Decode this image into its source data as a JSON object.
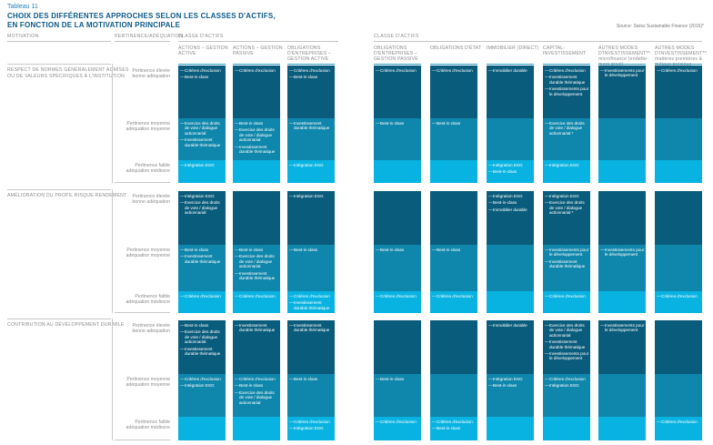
{
  "page": {
    "tag": "Tableau 11",
    "title_line1": "CHOIX DES DIFFÉRENTES APPROCHES SELON LES CLASSES D'ACTIFS,",
    "title_line2": "EN FONCTION DE LA MOTIVATION PRINCIPALE",
    "source": "Source: Swiss Sustainable Finance (2016)*"
  },
  "header": {
    "motivation": "MOTIVATION",
    "pertinence": "PERTINENCE/ADÉQUATION",
    "classe_actifs_left": "CLASSE D'ACTIFS",
    "classe_actifs_right": "CLASSE D'ACTIFS"
  },
  "colors": {
    "pertinence_high": "#0a5c7c",
    "pertinence_medium": "#0f86ab",
    "pertinence_low": "#09b3e1",
    "header_underline": "#2f9fc6",
    "title_blue": "#0a5989"
  },
  "asset_classes": [
    {
      "lines": [
        "ACTIONS – GESTION",
        "ACTIVE"
      ]
    },
    {
      "lines": [
        "ACTIONS – GESTION",
        "PASSIVE"
      ]
    },
    {
      "lines": [
        "OBLIGATIONS",
        "D'ENTREPRISES –",
        "GESTION ACTIVE"
      ]
    },
    {
      "lines": [
        "OBLIGATIONS",
        "D'ENTREPRISES –",
        "GESTION PASSIVE"
      ]
    },
    {
      "lines": [
        "OBLIGATIONS D'ÉTAT"
      ]
    },
    {
      "lines": [
        "IMMOBILIER (DIRECT)"
      ]
    },
    {
      "lines": [
        "CAPITAL-",
        "INVESTISSEMENT"
      ]
    },
    {
      "lines": [
        "AUTRES MODES",
        "D'INVESTISSEMENT**:",
        "microfinance (endette-",
        "ment privé)"
      ]
    },
    {
      "lines": [
        "AUTRES MODES",
        "D'INVESTISSEMENT**:",
        "matières premières &",
        "métaux précieux"
      ]
    }
  ],
  "pertinence_levels": [
    {
      "line1": "Pertinence élevée",
      "line2": "bonne adéquation",
      "color": "#0a5c7c"
    },
    {
      "line1": "Pertinence moyenne",
      "line2": "adéquation moyenne",
      "color": "#0f86ab"
    },
    {
      "line1": "Pertinence faible",
      "line2": "adéquation médiocre",
      "color": "#09b3e1"
    }
  ],
  "blocks": [
    {
      "motivation_lines": [
        "RESPECT DE NORMES GÉNÉRALEMENT ADMISES",
        "OU DE VALEURS SPÉCIFIQUES À L'INSTITUTION"
      ],
      "rows": [
        {
          "cells": [
            [
              "Critères d'exclusion",
              "Best-in-class"
            ],
            [
              "Critères d'exclusion"
            ],
            [
              "Critères d'exclusion",
              "Best-in-class"
            ],
            [
              "Critères d'exclusion"
            ],
            [
              "Critères d'exclusion"
            ],
            [
              "Immobilier durable"
            ],
            [
              "Critères d'exclusion",
              "Investissement durable thématique",
              "Investissements pour le développement"
            ],
            [
              "Investissements pour le développement"
            ],
            [
              "Critères d'exclusion"
            ]
          ]
        },
        {
          "cells": [
            [
              "Exercice des droits de vote / dialogue actionnarial",
              "Investissement durable thématique"
            ],
            [
              "Best-in-class",
              "Exercice des droits de vote / dialogue actionnarial",
              "Investissement durable thématique"
            ],
            [
              "Investissement durable thématique"
            ],
            [
              "Best-in-class"
            ],
            [
              "Best-in-class"
            ],
            [],
            [
              "Exercice des droits de vote / dialogue actionnarial *"
            ],
            [],
            []
          ]
        },
        {
          "cells": [
            [
              "Intégration ESG"
            ],
            [],
            [
              "Intégration ESG"
            ],
            [],
            [],
            [
              "Intégration ESG",
              "Best-in-class"
            ],
            [
              "Intégration ESG"
            ],
            [],
            []
          ]
        }
      ]
    },
    {
      "motivation_lines": [
        "AMÉLIORATION DU PROFIL RISQUE-RENDEMENT"
      ],
      "rows": [
        {
          "cells": [
            [
              "Intégration ESG",
              "Exercice des droits de vote / dialogue actionnarial"
            ],
            [],
            [
              "Intégration ESG"
            ],
            [],
            [],
            [
              "Intégration ESG",
              "Best-in-class",
              "Immobilier durable"
            ],
            [
              "Intégration ESG",
              "Exercice des droits de vote / dialogue actionnarial *"
            ],
            [],
            []
          ]
        },
        {
          "cells": [
            [
              "Best-in-class",
              "Investissement durable thématique"
            ],
            [
              "Best-in-class",
              "Exercice des droits de vote / dialogue actionnarial",
              "Investissement durable thématique"
            ],
            [
              "Best-in-class"
            ],
            [
              "Best-in-class"
            ],
            [
              "Best-in-class"
            ],
            [],
            [
              "Investissements pour le développement",
              "Investissement durable thématique"
            ],
            [
              "Investissements pour le développement"
            ],
            []
          ]
        },
        {
          "cells": [
            [
              "Critères d'exclusion"
            ],
            [
              "Critères d'exclusion"
            ],
            [
              "Critères d'exclusion",
              "Investissement durable thématique"
            ],
            [
              "Critères d'exclusion"
            ],
            [
              "Critères d'exclusion"
            ],
            [],
            [
              "Critères d'exclusion"
            ],
            [],
            [
              "Critères d'exclusion"
            ]
          ]
        }
      ]
    },
    {
      "motivation_lines": [
        "CONTRIBUTION AU DÉVELOPPEMENT DURABLE"
      ],
      "rows": [
        {
          "cells": [
            [
              "Best-in-class",
              "Exercice des droits de vote / dialogue actionnarial",
              "Investissement durable thématique"
            ],
            [
              "Investissement durable thématique"
            ],
            [
              "Investissement durable thématique"
            ],
            [],
            [],
            [
              "Immobilier durable"
            ],
            [
              "Exercice des droits de vote / dialogue actionnarial",
              "Investissement durable thématique",
              "Investissements pour le développement"
            ],
            [
              "Investissements pour le développement"
            ],
            []
          ]
        },
        {
          "cells": [
            [
              "Critères d'exclusion",
              "Intégration ESG"
            ],
            [
              "Critères d'exclusion",
              "Best-in-class",
              "Exercice des droits de vote / dialogue actionnarial"
            ],
            [
              "Best-in-class"
            ],
            [
              "Best-in-class"
            ],
            [],
            [
              "Intégration ESG",
              "Best-in-class"
            ],
            [
              "Critères d'exclusion",
              "Intégration ESG"
            ],
            [],
            []
          ]
        },
        {
          "cells": [
            [],
            [],
            [
              "Critères d'exclusion",
              "Intégration ESG"
            ],
            [
              "Critères d'exclusion"
            ],
            [
              "Critères d'exclusion",
              "Best-in-class"
            ],
            [],
            [],
            [],
            [
              "Critères d'exclusion"
            ]
          ]
        }
      ]
    }
  ]
}
